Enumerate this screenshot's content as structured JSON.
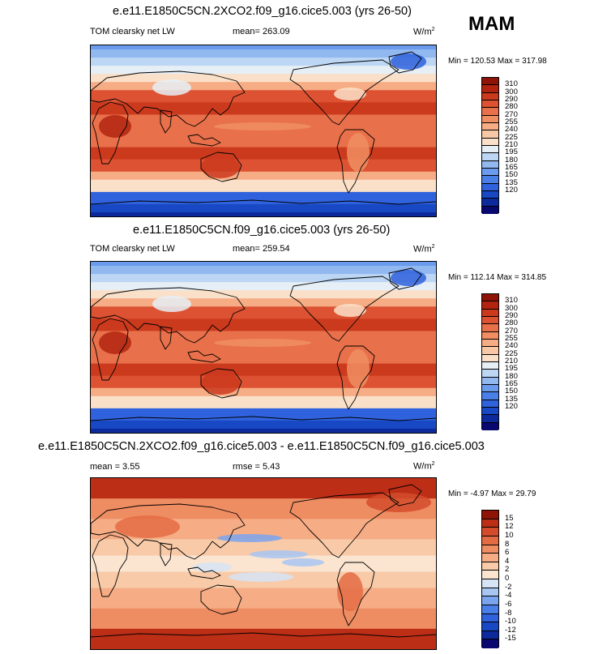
{
  "season": "MAM",
  "palette_abs": [
    "#08086e",
    "#0c2a9c",
    "#1948c4",
    "#2f62dc",
    "#4a7fe8",
    "#6b9bec",
    "#92b8f0",
    "#bcd6f4",
    "#e6eef6",
    "#fae0c8",
    "#f8c8a6",
    "#f6ac84",
    "#f08e62",
    "#e8704a",
    "#dc5232",
    "#cc3a1e",
    "#b22410",
    "#8e1408"
  ],
  "palette_diff": [
    "#08086e",
    "#0c2a9c",
    "#1948c4",
    "#2f62dc",
    "#4a7fe8",
    "#7aa4ee",
    "#a8c6f2",
    "#d6e4f6",
    "#fbe4d0",
    "#f8caa8",
    "#f6ac84",
    "#ee8c62",
    "#e46c44",
    "#d44c2c",
    "#bc2e16",
    "#8e1408"
  ],
  "panels": [
    {
      "title": "e.e11.E1850C5CN.2XCO2.f09_g16.cice5.003 (yrs 26-50)",
      "left_label": "TOM clearsky net LW",
      "mean_label": "mean= 263.09",
      "units": "W/m",
      "units_sup": "2",
      "minmax": "Min = 120.53 Max = 317.98",
      "ticks": [
        "310",
        "300",
        "290",
        "280",
        "270",
        "255",
        "240",
        "225",
        "210",
        "195",
        "180",
        "165",
        "150",
        "135",
        "120"
      ]
    },
    {
      "title": "e.e11.E1850C5CN.f09_g16.cice5.003 (yrs 26-50)",
      "left_label": "TOM clearsky net LW",
      "mean_label": "mean= 259.54",
      "units": "W/m",
      "units_sup": "2",
      "minmax": "Min = 112.14 Max = 314.85",
      "ticks": [
        "310",
        "300",
        "290",
        "280",
        "270",
        "255",
        "240",
        "225",
        "210",
        "195",
        "180",
        "165",
        "150",
        "135",
        "120"
      ]
    },
    {
      "title": "e.e11.E1850C5CN.2XCO2.f09_g16.cice5.003 - e.e11.E1850C5CN.f09_g16.cice5.003",
      "left_label": "mean =   3.55",
      "mean_label": "rmse =   5.43",
      "units": "W/m",
      "units_sup": "2",
      "minmax": "Min = -4.97 Max = 29.79",
      "ticks": [
        "15",
        "12",
        "10",
        "8",
        "6",
        "4",
        "2",
        "0",
        "-2",
        "-4",
        "-6",
        "-8",
        "-10",
        "-12",
        "-15"
      ]
    }
  ]
}
